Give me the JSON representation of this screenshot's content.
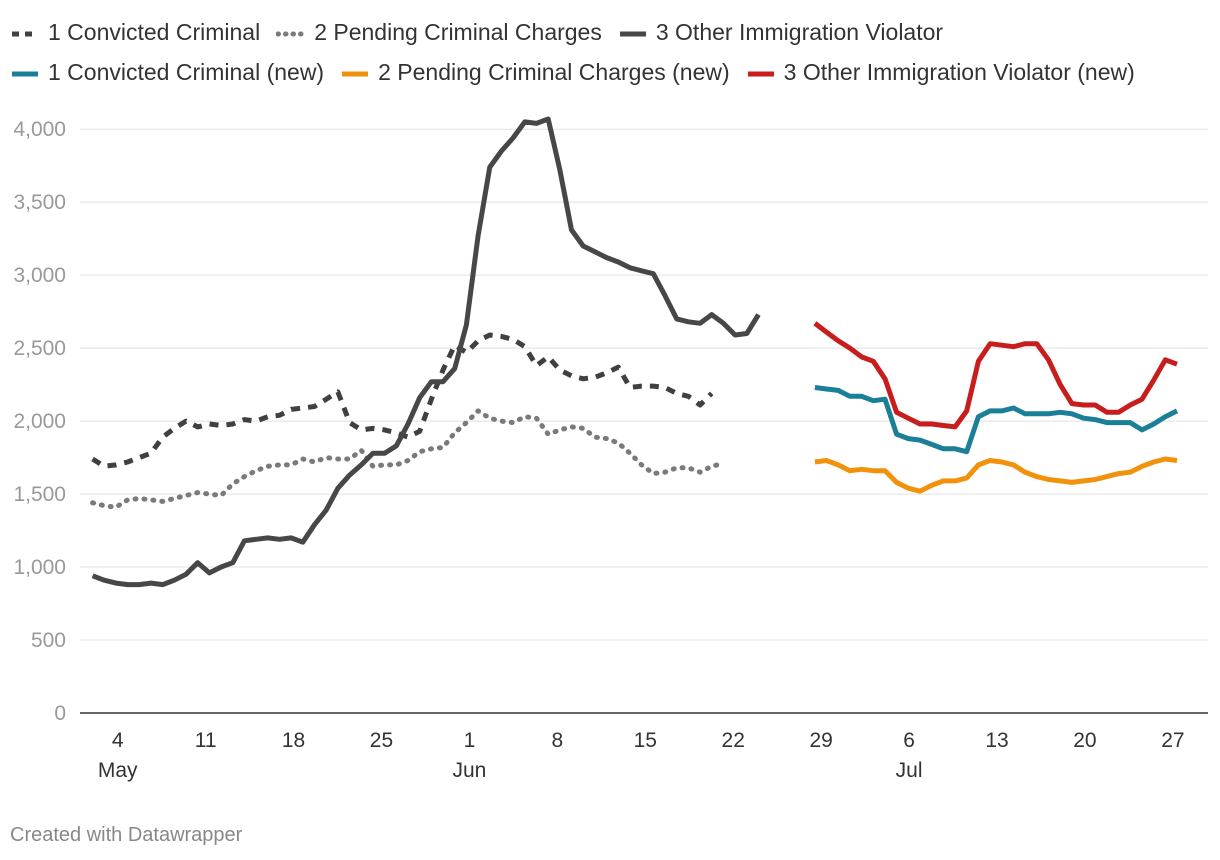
{
  "chart_data": {
    "type": "line",
    "legend": [
      {
        "name": "1 Convicted Criminal",
        "style": "dashed",
        "color": "#404040"
      },
      {
        "name": "2 Pending Criminal Charges",
        "style": "dotted",
        "color": "#7a7a7a"
      },
      {
        "name": "3 Other Immigration Violator",
        "style": "solid",
        "color": "#474747"
      },
      {
        "name": "1 Convicted Criminal (new)",
        "style": "solid",
        "color": "#1b7f98"
      },
      {
        "name": "2 Pending Criminal Charges (new)",
        "style": "solid",
        "color": "#f2920c"
      },
      {
        "name": "3 Other Immigration Violator (new)",
        "style": "solid",
        "color": "#c71e1d"
      }
    ],
    "y_ticks": [
      "4,000",
      "3,500",
      "3,000",
      "2,500",
      "2,000",
      "1,500",
      "1,000",
      "500",
      "0"
    ],
    "y_tick_values": [
      4000,
      3500,
      3000,
      2500,
      2000,
      1500,
      1000,
      500,
      0
    ],
    "ylim": [
      0,
      4200
    ],
    "x_day_range": [
      0,
      89
    ],
    "x_ticks": [
      {
        "label": "4",
        "day": 3,
        "month": "May"
      },
      {
        "label": "11",
        "day": 10,
        "month": ""
      },
      {
        "label": "18",
        "day": 17,
        "month": ""
      },
      {
        "label": "25",
        "day": 24,
        "month": ""
      },
      {
        "label": "1",
        "day": 31,
        "month": "Jun"
      },
      {
        "label": "8",
        "day": 38,
        "month": ""
      },
      {
        "label": "15",
        "day": 45,
        "month": ""
      },
      {
        "label": "22",
        "day": 52,
        "month": ""
      },
      {
        "label": "29",
        "day": 59,
        "month": ""
      },
      {
        "label": "6",
        "day": 66,
        "month": "Jul"
      },
      {
        "label": "13",
        "day": 73,
        "month": ""
      },
      {
        "label": "20",
        "day": 80,
        "month": ""
      },
      {
        "label": "27",
        "day": 87,
        "month": ""
      }
    ],
    "series": [
      {
        "name": "1 Convicted Criminal",
        "color": "#404040",
        "style": "dashed",
        "x_start": 1,
        "x_step": 0.93,
        "values": [
          1740,
          1690,
          1700,
          1720,
          1750,
          1780,
          1890,
          1950,
          2000,
          1960,
          1980,
          1970,
          1980,
          2010,
          2000,
          2030,
          2040,
          2080,
          2090,
          2100,
          2150,
          2200,
          1990,
          1940,
          1950,
          1940,
          1920,
          1890,
          1930,
          2150,
          2350,
          2520,
          2470,
          2550,
          2590,
          2580,
          2560,
          2510,
          2380,
          2440,
          2350,
          2310,
          2290,
          2300,
          2330,
          2370,
          2230,
          2240,
          2240,
          2230,
          2190,
          2170,
          2110,
          2190
        ]
      },
      {
        "name": "2 Pending Criminal Charges",
        "color": "#7a7a7a",
        "style": "dotted",
        "x_start": 1,
        "x_step": 0.93,
        "values": [
          1440,
          1420,
          1410,
          1460,
          1470,
          1460,
          1450,
          1470,
          1490,
          1510,
          1500,
          1490,
          1570,
          1620,
          1660,
          1690,
          1700,
          1700,
          1740,
          1720,
          1750,
          1740,
          1740,
          1800,
          1690,
          1700,
          1700,
          1730,
          1790,
          1810,
          1820,
          1920,
          1990,
          2070,
          2020,
          2000,
          1990,
          2030,
          2020,
          1910,
          1940,
          1960,
          1950,
          1890,
          1880,
          1850,
          1780,
          1700,
          1640,
          1650,
          1680,
          1680,
          1650,
          1690,
          1710
        ]
      },
      {
        "name": "3 Other Immigration Violator",
        "color": "#474747",
        "style": "solid",
        "x_start": 1,
        "x_step": 0.93,
        "values": [
          940,
          910,
          890,
          880,
          880,
          890,
          880,
          910,
          950,
          1030,
          960,
          1000,
          1030,
          1180,
          1190,
          1200,
          1190,
          1200,
          1170,
          1290,
          1390,
          1540,
          1630,
          1700,
          1780,
          1780,
          1830,
          1980,
          2160,
          2270,
          2270,
          2360,
          2660,
          3270,
          3740,
          3850,
          3940,
          4050,
          4040,
          4070,
          3720,
          3310,
          3200,
          3160,
          3120,
          3090,
          3050,
          3030,
          3010,
          2860,
          2700,
          2680,
          2670,
          2730,
          2670,
          2590,
          2600,
          2730
        ]
      },
      {
        "name": "1 Convicted Criminal (new)",
        "color": "#1b7f98",
        "style": "solid",
        "x_start": 58.5,
        "x_step": 0.93,
        "values": [
          2230,
          2220,
          2210,
          2170,
          2170,
          2140,
          2150,
          1910,
          1880,
          1870,
          1840,
          1810,
          1810,
          1790,
          2030,
          2070,
          2070,
          2090,
          2050,
          2050,
          2050,
          2060,
          2050,
          2020,
          2010,
          1990,
          1990,
          1990,
          1940,
          1980,
          2030,
          2070
        ]
      },
      {
        "name": "2 Pending Criminal Charges (new)",
        "color": "#f2920c",
        "style": "solid",
        "x_start": 58.5,
        "x_step": 0.93,
        "values": [
          1720,
          1730,
          1700,
          1660,
          1670,
          1660,
          1660,
          1580,
          1540,
          1520,
          1560,
          1590,
          1590,
          1610,
          1700,
          1730,
          1720,
          1700,
          1650,
          1620,
          1600,
          1590,
          1580,
          1590,
          1600,
          1620,
          1640,
          1650,
          1690,
          1720,
          1740,
          1730
        ]
      },
      {
        "name": "3 Other Immigration Violator (new)",
        "color": "#c71e1d",
        "style": "solid",
        "x_start": 58.5,
        "x_step": 0.93,
        "values": [
          2670,
          2610,
          2550,
          2500,
          2440,
          2410,
          2290,
          2060,
          2020,
          1980,
          1980,
          1970,
          1960,
          2070,
          2410,
          2530,
          2520,
          2510,
          2530,
          2530,
          2420,
          2250,
          2120,
          2110,
          2110,
          2060,
          2060,
          2110,
          2150,
          2280,
          2420,
          2390
        ]
      }
    ]
  },
  "credit": "Created with Datawrapper"
}
